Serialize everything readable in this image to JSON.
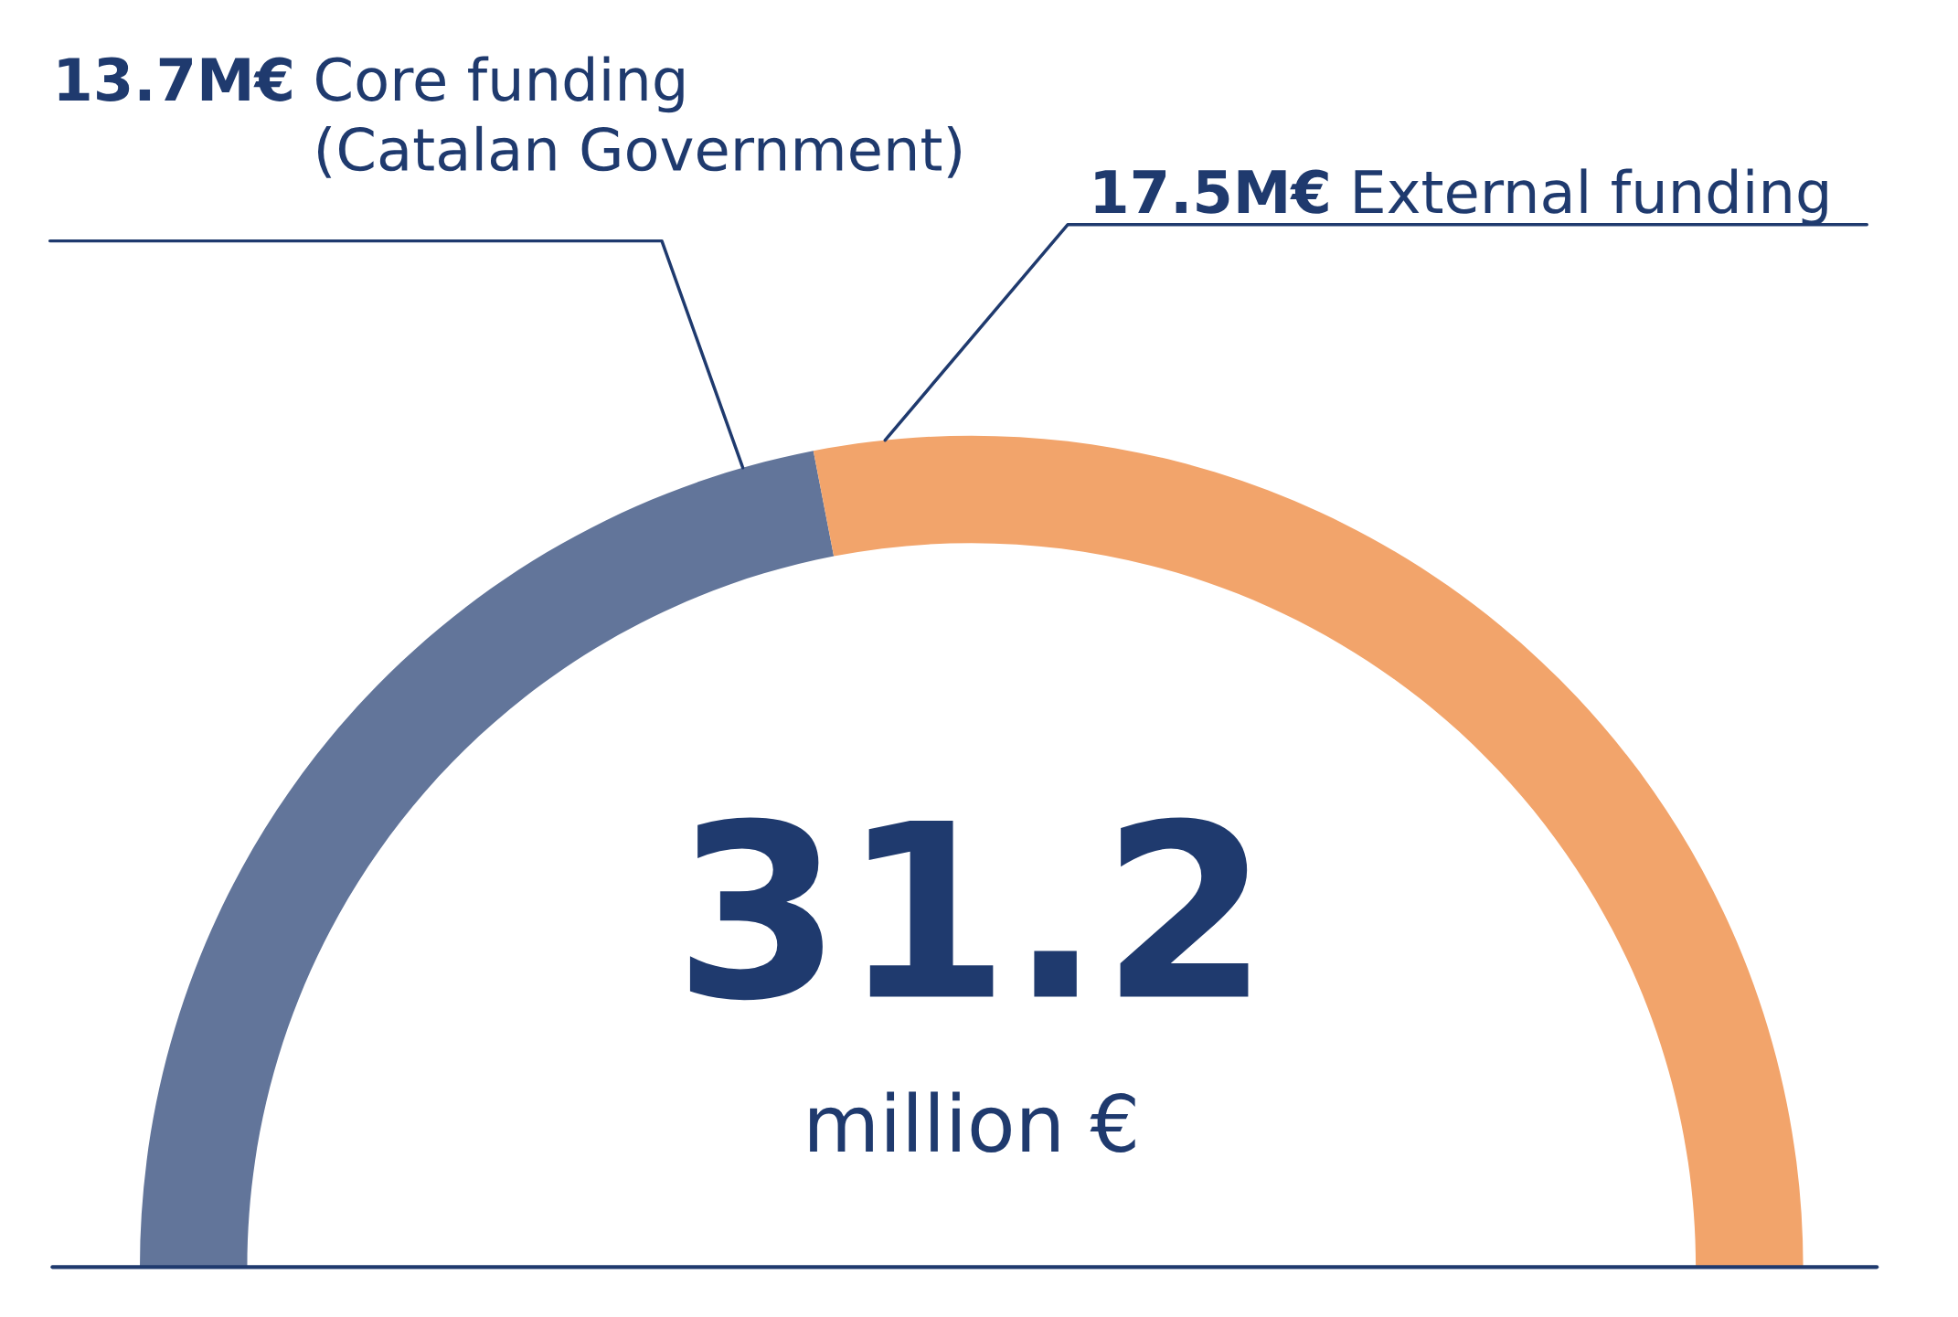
{
  "chart_data": {
    "type": "donut",
    "categories": [
      "Core funding\n(Catalan Government)",
      "External funding"
    ],
    "values": [
      13.7,
      17.5
    ],
    "colors": [
      "#62759a",
      "#f2a46b"
    ],
    "value_labels": [
      "13.7M€",
      "17.5M€"
    ],
    "annotations": [
      "31.2",
      "million €"
    ]
  }
}
